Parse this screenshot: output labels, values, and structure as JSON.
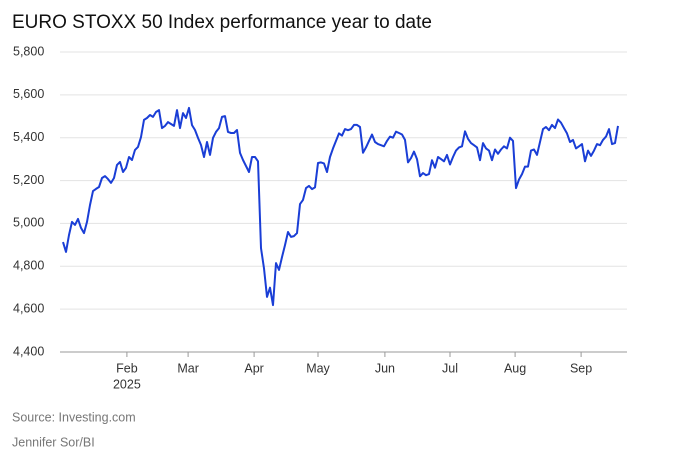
{
  "chart_data": {
    "type": "line",
    "title": "EURO STOXX 50 Index performance year to date",
    "source": "Source: Investing.com",
    "credit": "Jennifer Sor/BI",
    "color": "#1a3ed6",
    "grid": true,
    "values": [
      4913,
      4867,
      4946,
      5007,
      4993,
      5021,
      4979,
      4955,
      5007,
      5086,
      5151,
      5161,
      5170,
      5212,
      5221,
      5207,
      5189,
      5212,
      5273,
      5287,
      5240,
      5259,
      5310,
      5296,
      5343,
      5357,
      5403,
      5483,
      5492,
      5506,
      5497,
      5520,
      5529,
      5445,
      5455,
      5473,
      5464,
      5455,
      5529,
      5445,
      5515,
      5492,
      5539,
      5459,
      5436,
      5399,
      5366,
      5310,
      5380,
      5320,
      5399,
      5427,
      5445,
      5497,
      5501,
      5427,
      5422,
      5422,
      5436,
      5329,
      5296,
      5268,
      5240,
      5310,
      5310,
      5290,
      4885,
      4790,
      4657,
      4700,
      4619,
      4815,
      4783,
      4843,
      4899,
      4960,
      4937,
      4941,
      4955,
      5090,
      5110,
      5165,
      5175,
      5160,
      5168,
      5282,
      5285,
      5280,
      5240,
      5310,
      5350,
      5385,
      5420,
      5410,
      5440,
      5435,
      5440,
      5460,
      5460,
      5450,
      5330,
      5355,
      5385,
      5415,
      5380,
      5370,
      5365,
      5360,
      5385,
      5405,
      5400,
      5428,
      5422,
      5415,
      5390,
      5285,
      5305,
      5335,
      5300,
      5220,
      5235,
      5225,
      5230,
      5295,
      5260,
      5310,
      5300,
      5290,
      5320,
      5275,
      5310,
      5340,
      5355,
      5360,
      5430,
      5395,
      5375,
      5365,
      5355,
      5295,
      5375,
      5350,
      5340,
      5295,
      5345,
      5325,
      5345,
      5360,
      5350,
      5400,
      5385,
      5165,
      5205,
      5230,
      5265,
      5265,
      5340,
      5345,
      5320,
      5380,
      5440,
      5450,
      5435,
      5460,
      5445,
      5485,
      5470,
      5445,
      5420,
      5380,
      5390,
      5350,
      5360,
      5370,
      5290,
      5340,
      5315,
      5340,
      5370,
      5365,
      5390,
      5405,
      5440,
      5370,
      5375,
      5455
    ],
    "xlim": [
      -1,
      188
    ],
    "xticks": [
      {
        "value": 21.3,
        "label": "Feb"
      },
      {
        "value": 41.7,
        "label": "Mar"
      },
      {
        "value": 63.7,
        "label": "Apr"
      },
      {
        "value": 85,
        "label": "May"
      },
      {
        "value": 107.3,
        "label": "Jun"
      },
      {
        "value": 129,
        "label": "Jul"
      },
      {
        "value": 150.7,
        "label": "Aug"
      },
      {
        "value": 172.7,
        "label": "Sep"
      }
    ],
    "x_year_label": "2025",
    "ylim": [
      4400,
      5800
    ],
    "yticks": [
      {
        "value": 4400,
        "label": "4,400"
      },
      {
        "value": 4600,
        "label": "4,600"
      },
      {
        "value": 4800,
        "label": "4,800"
      },
      {
        "value": 5000,
        "label": "5,000"
      },
      {
        "value": 5200,
        "label": "5,200"
      },
      {
        "value": 5400,
        "label": "5,400"
      },
      {
        "value": 5600,
        "label": "5,600"
      },
      {
        "value": 5800,
        "label": "5,800"
      }
    ]
  }
}
